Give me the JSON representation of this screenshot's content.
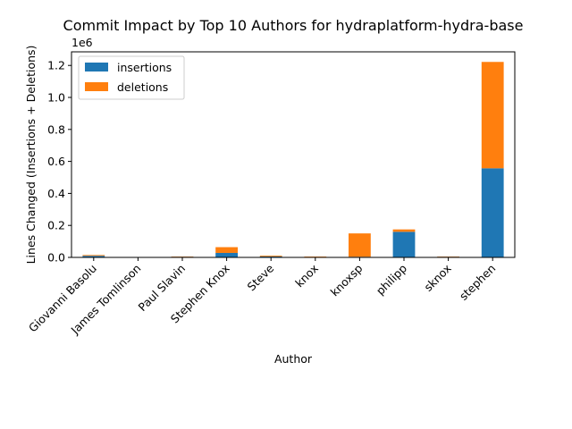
{
  "chart_data": {
    "type": "bar",
    "stacked": true,
    "title": "Commit Impact by Top 10 Authors for hydraplatform-hydra-base",
    "xlabel": "Author",
    "ylabel": "Lines Changed (Insertions + Deletions)",
    "y_offset_label": "1e6",
    "ylim": [
      0,
      1.285
    ],
    "yticks": [
      0.0,
      0.2,
      0.4,
      0.6,
      0.8,
      1.0,
      1.2
    ],
    "ytick_labels": [
      "0.0",
      "0.2",
      "0.4",
      "0.6",
      "0.8",
      "1.0",
      "1.2"
    ],
    "grid": false,
    "legend_position": "top-left",
    "categories": [
      "Giovanni Basolu",
      "James Tomlinson",
      "Paul Slavin",
      "Stephen Knox",
      "Steve",
      "knox",
      "knoxsp",
      "philipp",
      "sknox",
      "stephen"
    ],
    "series": [
      {
        "name": "insertions",
        "color": "#1f77b4",
        "values": [
          0.01,
          0.001,
          0.004,
          0.028,
          0.006,
          0.002,
          0.004,
          0.16,
          0.004,
          0.557
        ]
      },
      {
        "name": "deletions",
        "color": "#ff7f0e",
        "values": [
          0.005,
          0.001,
          0.002,
          0.036,
          0.005,
          0.003,
          0.146,
          0.015,
          0.002,
          0.665
        ]
      }
    ]
  }
}
